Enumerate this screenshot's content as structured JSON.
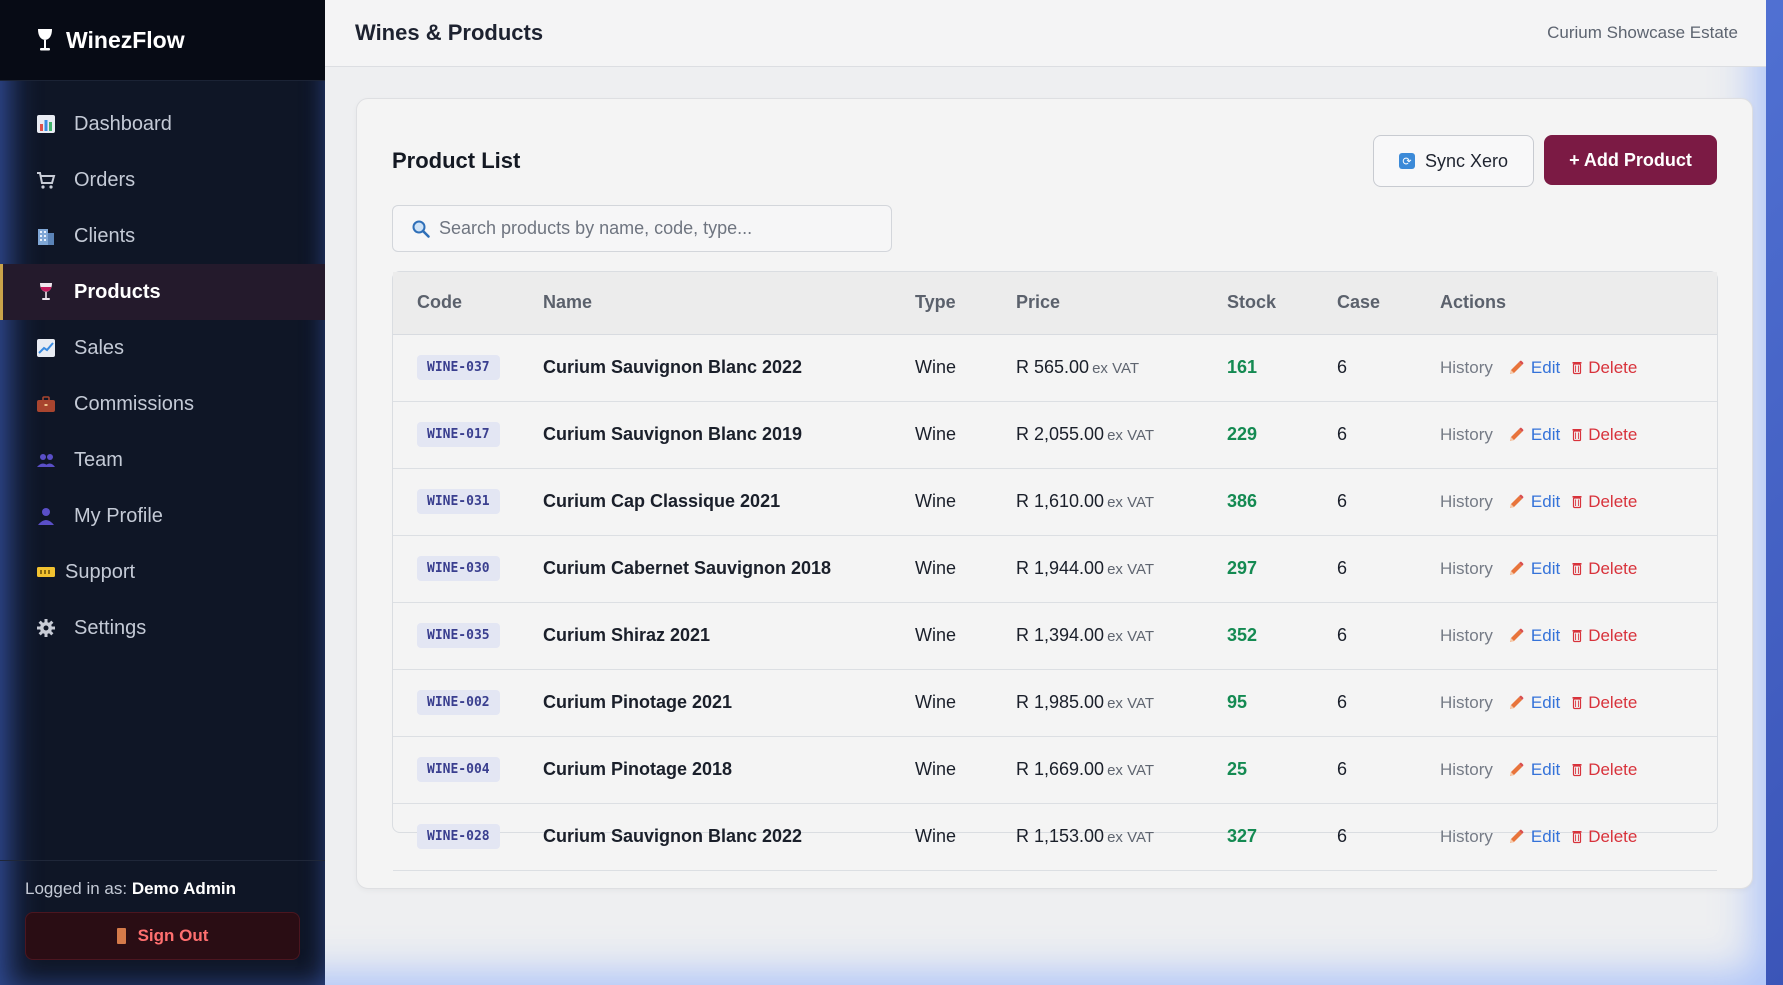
{
  "sidebar": {
    "brand": "WinezFlow",
    "items": [
      {
        "label": "Dashboard",
        "icon": "bar-chart-icon"
      },
      {
        "label": "Orders",
        "icon": "cart-icon"
      },
      {
        "label": "Clients",
        "icon": "building-icon"
      },
      {
        "label": "Products",
        "icon": "wine-glass-icon",
        "active": true
      },
      {
        "label": "Sales",
        "icon": "trend-chart-icon"
      },
      {
        "label": "Commissions",
        "icon": "briefcase-icon"
      },
      {
        "label": "Team",
        "icon": "users-icon"
      },
      {
        "label": "My Profile",
        "icon": "user-icon"
      },
      {
        "label": "Support",
        "icon": "ticket-icon"
      },
      {
        "label": "Settings",
        "icon": "gear-icon"
      }
    ],
    "logged_in_prefix": "Logged in as:",
    "logged_in_user": "Demo Admin",
    "sign_out": "Sign Out"
  },
  "header": {
    "title": "Wines & Products",
    "estate": "Curium Showcase Estate"
  },
  "card": {
    "title": "Product List",
    "sync_label": "Sync Xero",
    "add_label": "+ Add Product",
    "search_placeholder": "Search products by name, code, type..."
  },
  "table": {
    "columns": [
      "Code",
      "Name",
      "Type",
      "Price",
      "Stock",
      "Case",
      "Actions"
    ],
    "price_suffix": "ex VAT",
    "action_labels": {
      "history": "History",
      "edit": "Edit",
      "delete": "Delete"
    },
    "rows": [
      {
        "code": "WINE-037",
        "name": "Curium Sauvignon Blanc 2022",
        "type": "Wine",
        "price": "R 565.00",
        "stock": "161",
        "case": "6"
      },
      {
        "code": "WINE-017",
        "name": "Curium Sauvignon Blanc 2019",
        "type": "Wine",
        "price": "R 2,055.00",
        "stock": "229",
        "case": "6"
      },
      {
        "code": "WINE-031",
        "name": "Curium Cap Classique 2021",
        "type": "Wine",
        "price": "R 1,610.00",
        "stock": "386",
        "case": "6"
      },
      {
        "code": "WINE-030",
        "name": "Curium Cabernet Sauvignon 2018",
        "type": "Wine",
        "price": "R 1,944.00",
        "stock": "297",
        "case": "6"
      },
      {
        "code": "WINE-035",
        "name": "Curium Shiraz 2021",
        "type": "Wine",
        "price": "R 1,394.00",
        "stock": "352",
        "case": "6"
      },
      {
        "code": "WINE-002",
        "name": "Curium Pinotage 2021",
        "type": "Wine",
        "price": "R 1,985.00",
        "stock": "95",
        "case": "6"
      },
      {
        "code": "WINE-004",
        "name": "Curium Pinotage 2018",
        "type": "Wine",
        "price": "R 1,669.00",
        "stock": "25",
        "case": "6"
      },
      {
        "code": "WINE-028",
        "name": "Curium Sauvignon Blanc 2022",
        "type": "Wine",
        "price": "R 1,153.00",
        "stock": "327",
        "case": "6"
      }
    ]
  },
  "colors": {
    "accent": "#7b1a44",
    "sidebar_bg": "#0f1626",
    "stock_green": "#148a52",
    "edit_blue": "#3472d9",
    "delete_red": "#d8323b"
  }
}
